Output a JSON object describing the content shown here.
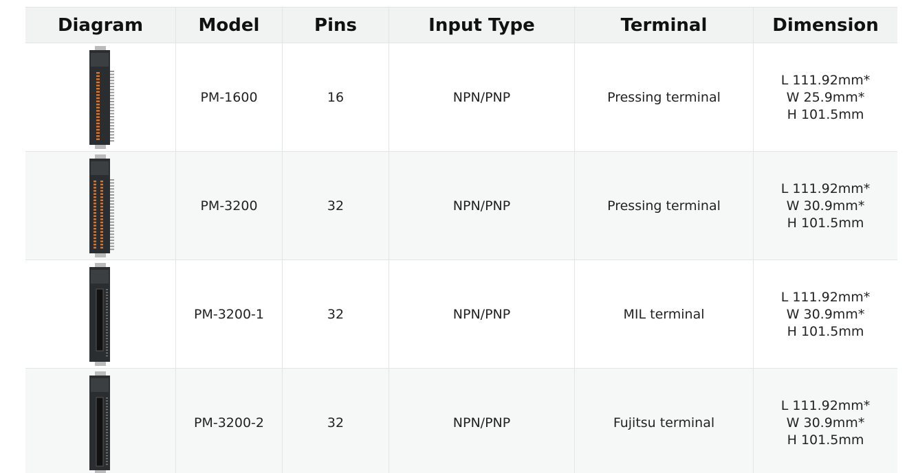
{
  "table": {
    "columns": [
      "Diagram",
      "Model",
      "Pins",
      "Input Type",
      "Terminal",
      "Dimension"
    ],
    "rows": [
      {
        "model": "PM-1600",
        "pins": "16",
        "input_type": "NPN/PNP",
        "terminal": "Pressing terminal",
        "dimension": [
          "L 111.92mm*",
          "W 25.9mm*",
          "H 101.5mm"
        ]
      },
      {
        "model": "PM-3200",
        "pins": "32",
        "input_type": "NPN/PNP",
        "terminal": "Pressing terminal",
        "dimension": [
          "L 111.92mm*",
          "W 30.9mm*",
          "H 101.5mm"
        ]
      },
      {
        "model": "PM-3200-1",
        "pins": "32",
        "input_type": "NPN/PNP",
        "terminal": "MIL terminal",
        "dimension": [
          "L 111.92mm*",
          "W 30.9mm*",
          "H 101.5mm"
        ]
      },
      {
        "model": "PM-3200-2",
        "pins": "32",
        "input_type": "NPN/PNP",
        "terminal": "Fujitsu terminal",
        "dimension": [
          "L 111.92mm*",
          "W 30.9mm*",
          "H 101.5mm"
        ]
      }
    ]
  }
}
